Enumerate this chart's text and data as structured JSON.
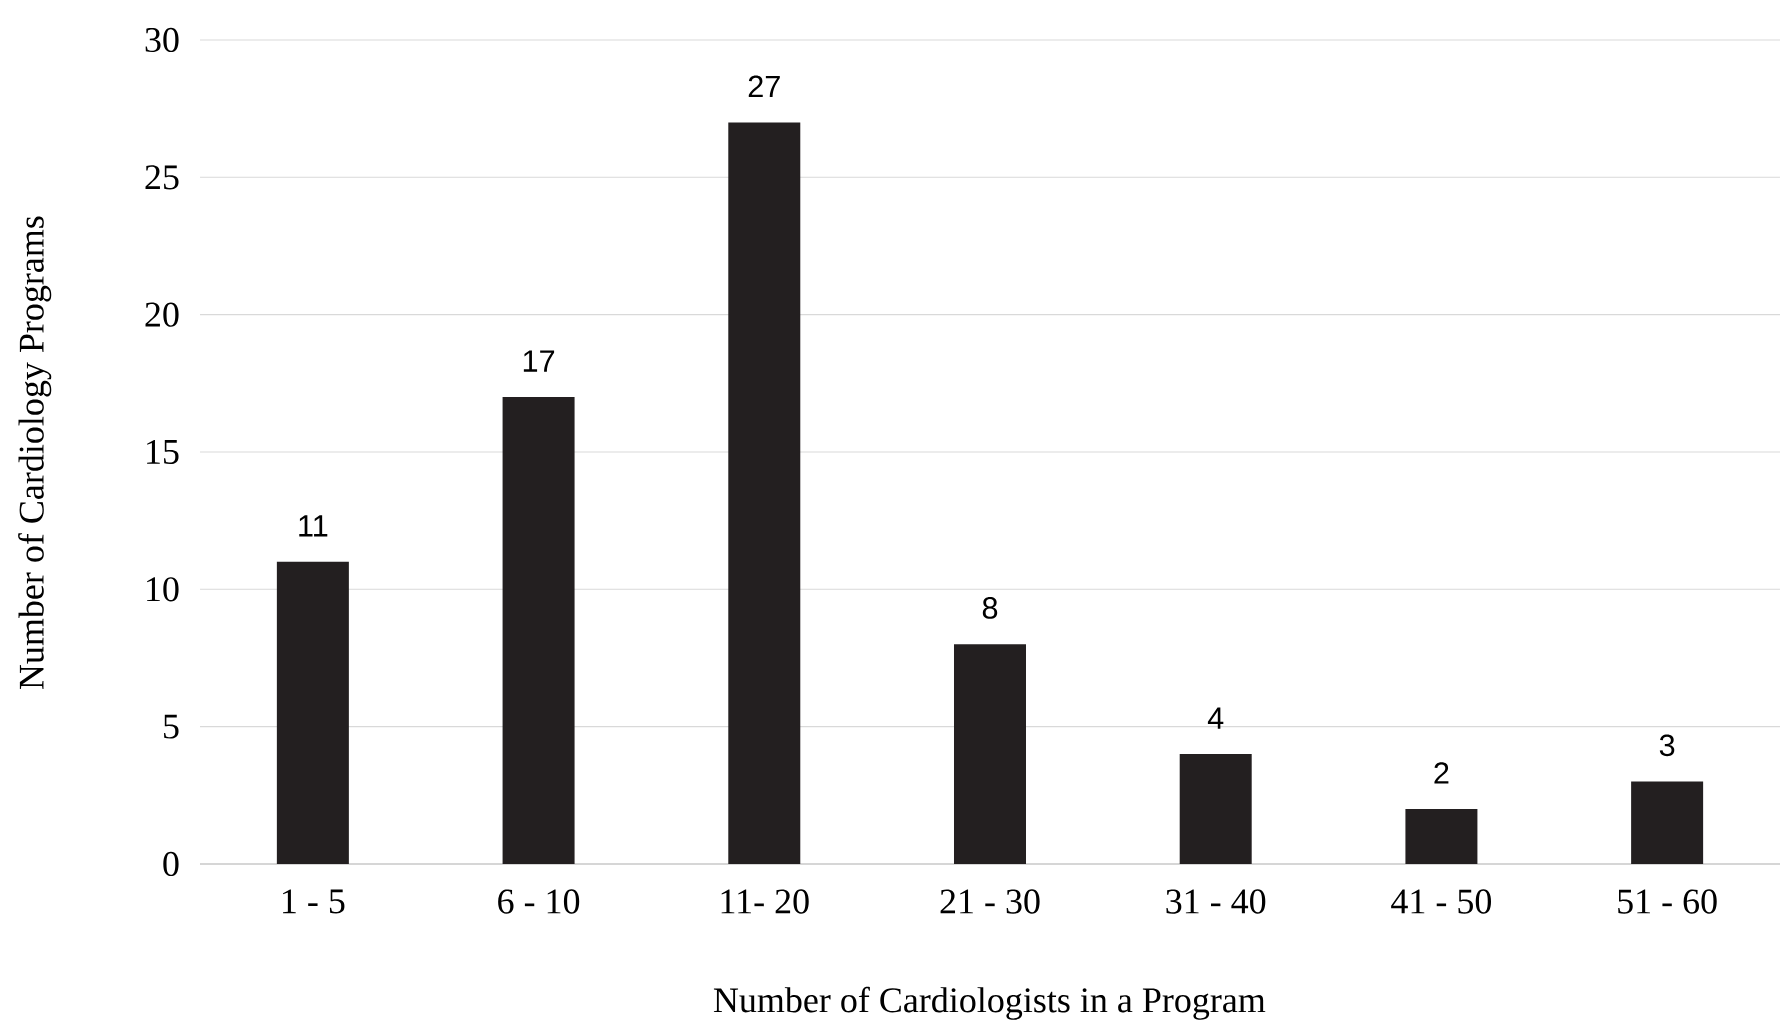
{
  "chart_data": {
    "type": "bar",
    "xlabel": "Number of Cardiologists in a Program",
    "ylabel": "Number of Cardiology Programs",
    "categories": [
      "1 - 5",
      "6 - 10",
      "11- 20",
      "21 - 30",
      "31 - 40",
      "41 - 50",
      "51 - 60"
    ],
    "values": [
      11,
      17,
      27,
      8,
      4,
      2,
      3
    ],
    "color": "#231f20",
    "ylim": [
      0,
      30
    ],
    "yticks": [
      0,
      5,
      10,
      15,
      20,
      25,
      30
    ],
    "grid": "y",
    "data_labels": true
  }
}
